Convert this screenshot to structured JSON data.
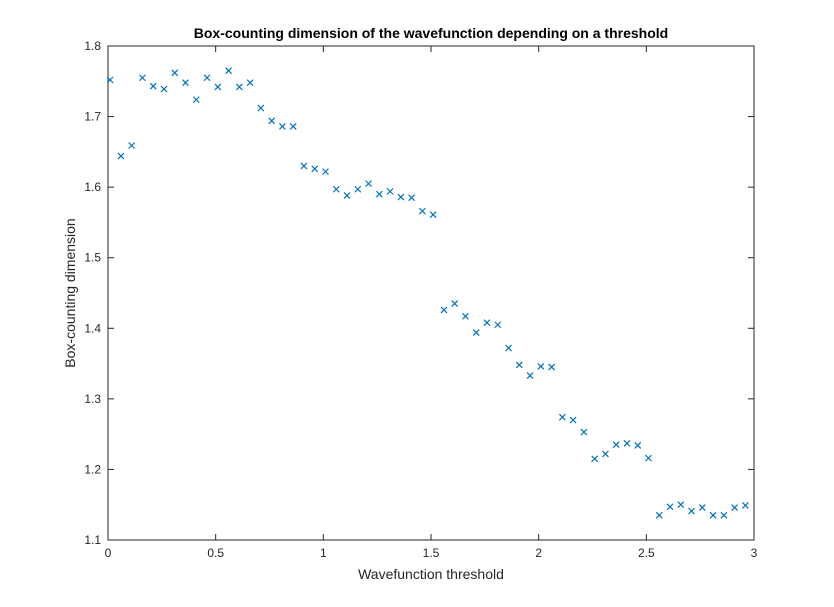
{
  "chart_data": {
    "type": "scatter",
    "title": "Box-counting dimension of the wavefunction depending on a threshold",
    "xlabel": "Wavefunction threshold",
    "ylabel": "Box-counting dimension",
    "xlim": [
      0,
      3
    ],
    "ylim": [
      1.1,
      1.8
    ],
    "xticks": [
      "0",
      "0.5",
      "1",
      "1.5",
      "2",
      "2.5",
      "3"
    ],
    "yticks": [
      "1.1",
      "1.2",
      "1.3",
      "1.4",
      "1.5",
      "1.6",
      "1.7",
      "1.8"
    ],
    "grid": false,
    "marker": "x",
    "color": "#0072BD",
    "series": [
      {
        "x": [
          0.01,
          0.06,
          0.11,
          0.16,
          0.21,
          0.26,
          0.31,
          0.36,
          0.41,
          0.46,
          0.51,
          0.56,
          0.61,
          0.66,
          0.71,
          0.76,
          0.81,
          0.86,
          0.91,
          0.96,
          1.01,
          1.06,
          1.11,
          1.16,
          1.21,
          1.26,
          1.31,
          1.36,
          1.41,
          1.46,
          1.51,
          1.56,
          1.61,
          1.66,
          1.71,
          1.76,
          1.81,
          1.86,
          1.91,
          1.96,
          2.01,
          2.06,
          2.11,
          2.16,
          2.21,
          2.26,
          2.31,
          2.36,
          2.41,
          2.46,
          2.51,
          2.56,
          2.61,
          2.66,
          2.71,
          2.76,
          2.81,
          2.86,
          2.91,
          2.96
        ],
        "y": [
          1.752,
          1.644,
          1.659,
          1.755,
          1.743,
          1.739,
          1.762,
          1.748,
          1.724,
          1.755,
          1.742,
          1.765,
          1.742,
          1.748,
          1.712,
          1.694,
          1.686,
          1.686,
          1.63,
          1.626,
          1.622,
          1.597,
          1.588,
          1.597,
          1.605,
          1.59,
          1.594,
          1.586,
          1.585,
          1.566,
          1.561,
          1.426,
          1.435,
          1.417,
          1.394,
          1.408,
          1.405,
          1.372,
          1.348,
          1.333,
          1.346,
          1.345,
          1.274,
          1.27,
          1.253,
          1.215,
          1.222,
          1.235,
          1.237,
          1.234,
          1.216,
          1.135,
          1.147,
          1.15,
          1.141,
          1.146,
          1.135,
          1.135,
          1.146,
          1.149
        ]
      }
    ]
  }
}
